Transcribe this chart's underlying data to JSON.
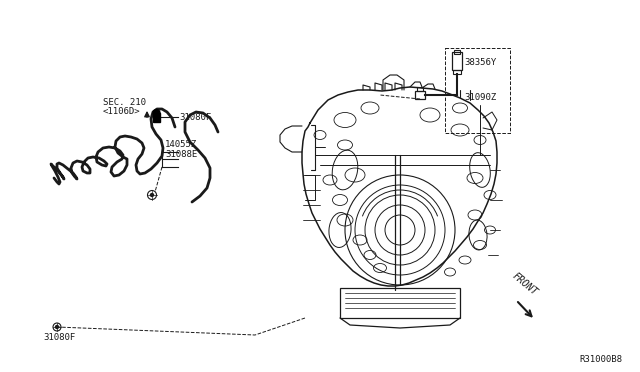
{
  "bg_color": "#ffffff",
  "line_color": "#1a1a1a",
  "diagram_id": "R31000B8",
  "labels": {
    "sec210_line1": "SEC. 210",
    "sec210_line2": "<1106D>",
    "31080F_top": "31080F",
    "14055Z": "14055Z",
    "31088E": "31088E",
    "31080F_bot": "31080F",
    "38356Y": "38356Y",
    "31090Z": "31090Z",
    "FRONT": "FRONT"
  },
  "font_size": 6.5,
  "font_family": "DejaVu Sans Mono"
}
